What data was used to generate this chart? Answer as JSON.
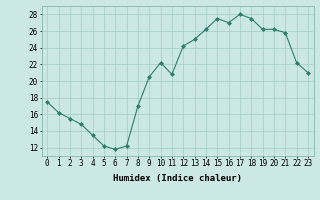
{
  "x": [
    0,
    1,
    2,
    3,
    4,
    5,
    6,
    7,
    8,
    9,
    10,
    11,
    12,
    13,
    14,
    15,
    16,
    17,
    18,
    19,
    20,
    21,
    22,
    23
  ],
  "y": [
    17.5,
    16.2,
    15.5,
    14.8,
    13.5,
    12.2,
    11.8,
    12.2,
    17.0,
    20.5,
    22.2,
    20.8,
    24.2,
    25.0,
    26.2,
    27.5,
    27.0,
    28.0,
    27.5,
    26.2,
    26.2,
    25.8,
    22.2,
    21.0
  ],
  "line_color": "#2e7d6e",
  "marker": "D",
  "marker_size": 2.0,
  "bg_color": "#cce8e4",
  "grid_color": "#aacfcb",
  "xlabel": "Humidex (Indice chaleur)",
  "ylim": [
    11,
    29
  ],
  "yticks": [
    12,
    14,
    16,
    18,
    20,
    22,
    24,
    26,
    28
  ],
  "xticks": [
    0,
    1,
    2,
    3,
    4,
    5,
    6,
    7,
    8,
    9,
    10,
    11,
    12,
    13,
    14,
    15,
    16,
    17,
    18,
    19,
    20,
    21,
    22,
    23
  ],
  "xlabel_fontsize": 6.5,
  "tick_fontsize": 5.5
}
